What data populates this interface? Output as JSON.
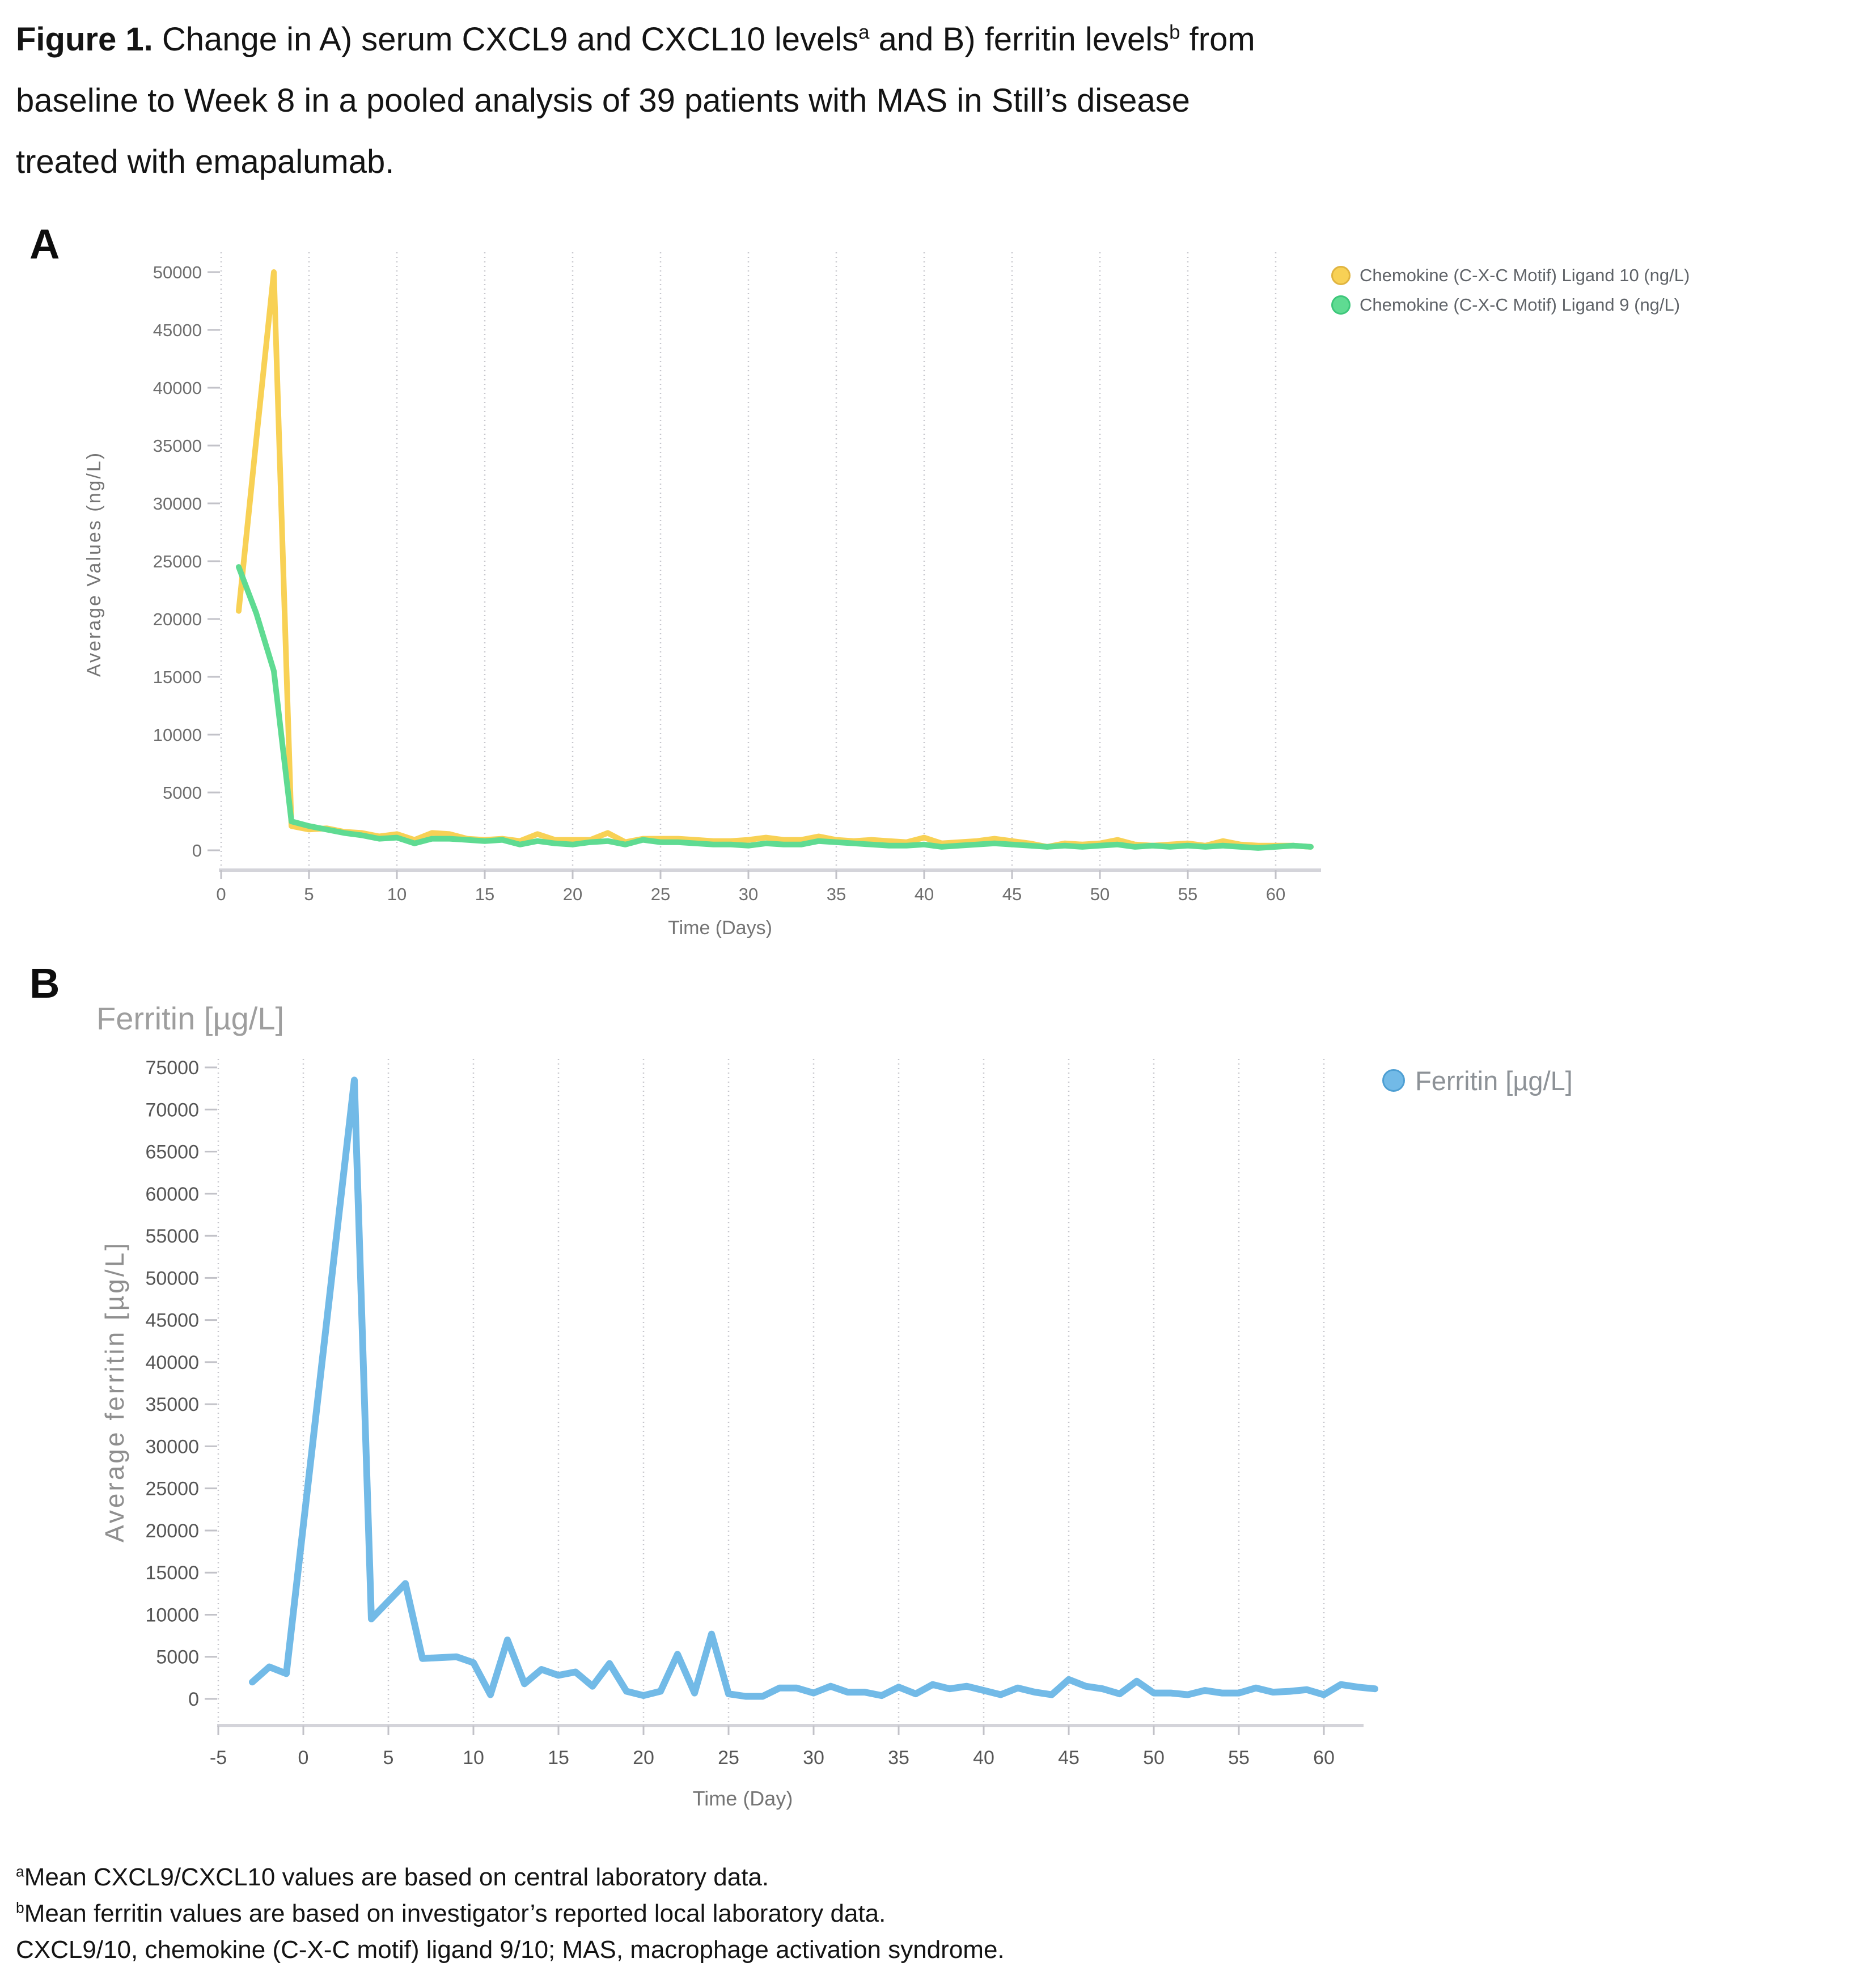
{
  "caption": {
    "lines": [
      [
        {
          "text": "Figure 1.",
          "bold": true
        },
        {
          "text": " Change in A) serum CXCL9 and CXCL10 levels"
        },
        {
          "text": "a",
          "sup": true
        },
        {
          "text": " and B) ferritin levels"
        },
        {
          "text": "b",
          "sup": true
        },
        {
          "text": " from"
        }
      ],
      [
        {
          "text": "baseline to Week 8 in a pooled analysis of 39 patients with MAS in Still’s disease"
        }
      ],
      [
        {
          "text": "treated with emapalumab."
        }
      ]
    ]
  },
  "panelA": {
    "label": "A"
  },
  "panelB": {
    "label": "B",
    "title": "Ferritin [µg/L]"
  },
  "footnotes": {
    "lines": [
      [
        {
          "text": "a",
          "sup": true
        },
        {
          "text": "Mean CXCL9/CXCL10 values are based on central laboratory data."
        }
      ],
      [
        {
          "text": "b",
          "sup": true
        },
        {
          "text": "Mean ferritin values are based on investigator’s reported local laboratory data."
        }
      ],
      [
        {
          "text": "CXCL9/10, chemokine (C-X-C motif) ligand 9/10; MAS, macrophage activation syndrome."
        }
      ]
    ]
  },
  "chart_data": [
    {
      "type": "line",
      "title": "",
      "xlabel": "Time (Days)",
      "ylabel": "Average Values (ng/L)",
      "xlim": [
        0,
        62
      ],
      "ylim": [
        0,
        50000
      ],
      "xticks": [
        0,
        5,
        10,
        15,
        20,
        25,
        30,
        35,
        40,
        45,
        50,
        55,
        60
      ],
      "yticks": [
        0,
        5000,
        10000,
        15000,
        20000,
        25000,
        30000,
        35000,
        40000,
        45000,
        50000
      ],
      "grid": "vertical-dotted",
      "legend_position": "right-top",
      "series": [
        {
          "name": "Chemokine (C-X-C Motif) Ligand 10 (ng/L)",
          "color": "#F8D155",
          "border": "#E0B440",
          "x": [
            1,
            2,
            3,
            4,
            5,
            6,
            7,
            8,
            9,
            10,
            11,
            12,
            13,
            14,
            15,
            16,
            17,
            18,
            19,
            20,
            21,
            22,
            23,
            24,
            25,
            26,
            27,
            28,
            29,
            30,
            31,
            32,
            33,
            34,
            35,
            36,
            37,
            38,
            39,
            40,
            41,
            42,
            43,
            44,
            45,
            46,
            47,
            48,
            49,
            50,
            51,
            52,
            53,
            54,
            55,
            56,
            57,
            58,
            59,
            60,
            61,
            62
          ],
          "values": [
            20700,
            35500,
            50000,
            2100,
            1800,
            1900,
            1600,
            1500,
            1200,
            1400,
            900,
            1500,
            1400,
            1000,
            900,
            1000,
            800,
            1400,
            900,
            900,
            900,
            1500,
            700,
            1000,
            1000,
            1000,
            900,
            800,
            800,
            900,
            1100,
            900,
            900,
            1200,
            900,
            800,
            900,
            800,
            700,
            1100,
            600,
            700,
            800,
            1000,
            800,
            600,
            300,
            600,
            500,
            600,
            900,
            500,
            400,
            500,
            600,
            400,
            800,
            500,
            400,
            400,
            400,
            300
          ]
        },
        {
          "name": "Chemokine (C-X-C Motif) Ligand 9 (ng/L)",
          "color": "#5FDB92",
          "border": "#3EC77B",
          "x": [
            1,
            2,
            3,
            4,
            5,
            6,
            7,
            8,
            9,
            10,
            11,
            12,
            13,
            14,
            15,
            16,
            17,
            18,
            19,
            20,
            21,
            22,
            23,
            24,
            25,
            26,
            27,
            28,
            29,
            30,
            31,
            32,
            33,
            34,
            35,
            36,
            37,
            38,
            39,
            40,
            41,
            42,
            43,
            44,
            45,
            46,
            47,
            48,
            49,
            50,
            51,
            52,
            53,
            54,
            55,
            56,
            57,
            58,
            59,
            60,
            61,
            62
          ],
          "values": [
            24500,
            20500,
            15500,
            2500,
            2100,
            1800,
            1500,
            1300,
            1000,
            1100,
            600,
            1000,
            1000,
            900,
            800,
            900,
            500,
            800,
            600,
            500,
            700,
            800,
            500,
            900,
            700,
            700,
            600,
            500,
            500,
            400,
            600,
            500,
            500,
            800,
            700,
            600,
            500,
            400,
            400,
            500,
            300,
            400,
            500,
            600,
            500,
            400,
            300,
            400,
            300,
            400,
            500,
            300,
            400,
            300,
            400,
            300,
            400,
            300,
            200,
            300,
            400,
            300
          ]
        }
      ]
    },
    {
      "type": "line",
      "title": "Ferritin [µg/L]",
      "xlabel": "Time (Day)",
      "ylabel": "Average ferritin [µg/L]",
      "xlim": [
        -5,
        63
      ],
      "ylim": [
        0,
        75000
      ],
      "xticks": [
        -5,
        0,
        5,
        10,
        15,
        20,
        25,
        30,
        35,
        40,
        45,
        50,
        55,
        60
      ],
      "yticks": [
        0,
        5000,
        10000,
        15000,
        20000,
        25000,
        30000,
        35000,
        40000,
        45000,
        50000,
        55000,
        60000,
        65000,
        70000,
        75000
      ],
      "grid": "vertical-dotted",
      "legend_position": "right-top",
      "series": [
        {
          "name": "Ferritin [µg/L]",
          "color": "#72BAE7",
          "border": "#4E9FD3",
          "x": [
            -3,
            -2,
            -1,
            3,
            4,
            6,
            7,
            9,
            10,
            11,
            12,
            13,
            14,
            15,
            16,
            17,
            18,
            19,
            20,
            21,
            22,
            23,
            24,
            25,
            26,
            27,
            28,
            29,
            30,
            31,
            32,
            33,
            34,
            35,
            36,
            37,
            38,
            39,
            40,
            41,
            42,
            43,
            44,
            45,
            46,
            47,
            48,
            49,
            50,
            51,
            52,
            53,
            54,
            55,
            56,
            57,
            58,
            59,
            60,
            61,
            62,
            63
          ],
          "values": [
            2000,
            3800,
            3000,
            73500,
            9500,
            13700,
            4800,
            5000,
            4300,
            500,
            7000,
            1800,
            3500,
            2800,
            3200,
            1500,
            4200,
            900,
            400,
            900,
            5300,
            700,
            7700,
            600,
            300,
            300,
            1300,
            1300,
            700,
            1500,
            800,
            800,
            400,
            1400,
            600,
            1700,
            1200,
            1500,
            1000,
            500,
            1300,
            800,
            500,
            2300,
            1500,
            1200,
            600,
            2100,
            700,
            700,
            500,
            1000,
            700,
            700,
            1300,
            800,
            900,
            1100,
            500,
            1700,
            1400,
            1200
          ]
        }
      ]
    }
  ]
}
